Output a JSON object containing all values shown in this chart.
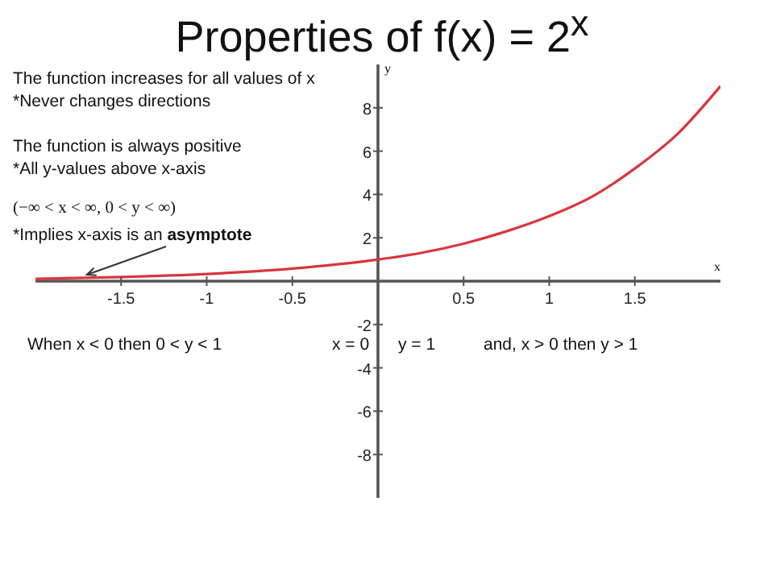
{
  "chart_data": {
    "type": "line",
    "title": "Properties of f(x) = 2$^{x}$",
    "xlabel": "x",
    "ylabel": "y",
    "x": [
      -2,
      -1.5,
      -1,
      -0.5,
      0,
      0.25,
      0.5,
      0.75,
      1,
      1.25,
      1.5,
      1.75,
      2
    ],
    "series": [
      {
        "color": "#d9363e",
        "values": [
          0.11,
          0.19,
          0.33,
          0.58,
          1,
          1.3,
          1.73,
          2.3,
          3,
          3.9,
          5.2,
          6.8,
          9
        ]
      }
    ],
    "xlim": [
      -2,
      2
    ],
    "ylim": [
      -10,
      10
    ],
    "xticks": [
      -1.5,
      -1,
      -0.5,
      0.5,
      1,
      1.5
    ],
    "yticks": [
      -8,
      -6,
      -4,
      -2,
      2,
      4,
      6,
      8
    ],
    "grid": false,
    "legend": false,
    "marker": "none",
    "line_style": "solid",
    "annotations": [
      "The function increases for all values of x",
      "*Never changes directions",
      "The function is always positive",
      "*All y-values above x-axis",
      "(−∞ < x < ∞, 0 < y < ∞)",
      {
        "text": "*Implies x-axis is an asymptote",
        "x": -1.7,
        "y": 0.15
      },
      "When x < 0 then 0 < y < 1",
      "x = 0",
      "y = 1",
      "and, x > 0 then y > 1"
    ]
  }
}
